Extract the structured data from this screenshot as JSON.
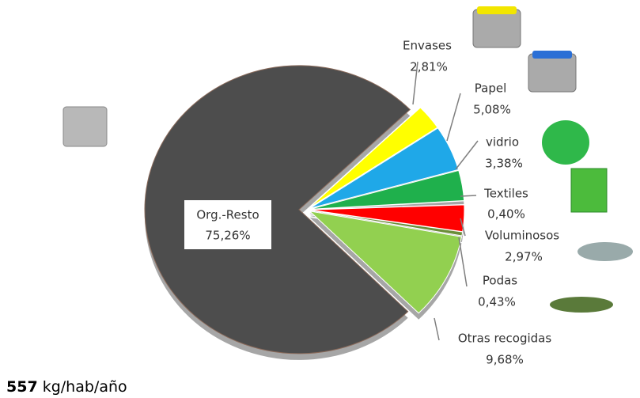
{
  "chart_data": {
    "type": "pie",
    "categories": [
      "Envases",
      "Papel",
      "vidrio",
      "Textiles",
      "Voluminosos",
      "Podas",
      "Otras recogidas",
      "Org.-Resto"
    ],
    "values": [
      2.81,
      5.08,
      3.38,
      0.4,
      2.97,
      0.43,
      9.68,
      75.26
    ],
    "value_labels": [
      "2,81%",
      "5,08%",
      "3,38%",
      "0,40%",
      "2,97%",
      "0,43%",
      "9,68%",
      "75,26%"
    ],
    "colors": [
      "#ffff00",
      "#1fa8e8",
      "#1fb04c",
      "#a6a6a6",
      "#ff0000",
      "#6b8e3a",
      "#92d050",
      "#4d4d4d"
    ],
    "total": 557,
    "total_unit": "kg/hab/año"
  }
}
